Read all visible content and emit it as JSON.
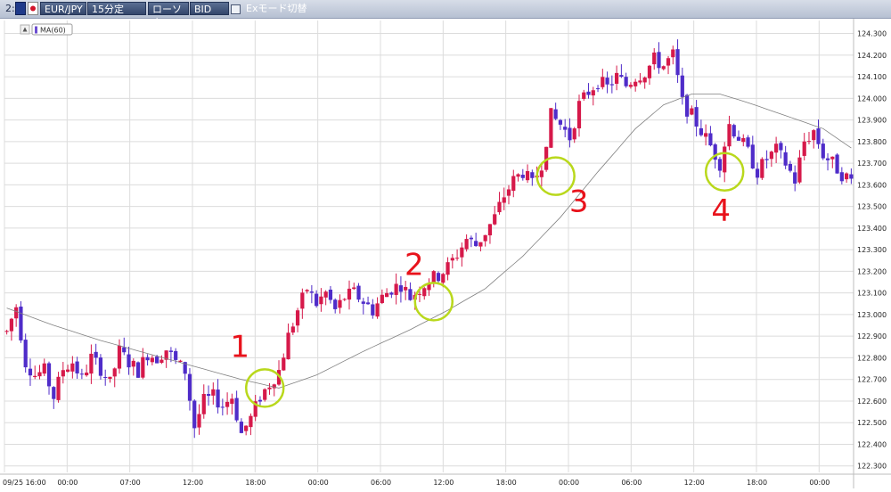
{
  "toolbar": {
    "chart_index": "2:",
    "symbol": "EUR/JPY",
    "timeframe": "15分定",
    "chart_style": "ローソク",
    "price_side": "BID",
    "ex_mode_label": "Exモード切替"
  },
  "colors": {
    "up_candle": "#d6194a",
    "down_candle": "#4f2cc9",
    "ma_line": "#808080",
    "marker_circle": "#b9d81c",
    "marker_number": "#e8121b",
    "grid": "#dcdcdc"
  },
  "chart_data": {
    "type": "candlestick",
    "indicator_label": "MA(60)",
    "ylim": [
      122.27,
      124.36
    ],
    "yticks": [
      "122.300",
      "122.400",
      "122.500",
      "122.600",
      "122.700",
      "122.800",
      "122.900",
      "123.000",
      "123.100",
      "123.200",
      "123.300",
      "123.400",
      "123.500",
      "123.600",
      "123.700",
      "123.800",
      "123.900",
      "124.000",
      "124.100",
      "124.200",
      "124.300"
    ],
    "xticks": [
      "09/25 16:00",
      "00:00",
      "07:00",
      "12:00",
      "18:00",
      "00:00",
      "06:00",
      "12:00",
      "18:00",
      "00:00",
      "06:00",
      "12:00",
      "18:00",
      "00:00"
    ],
    "price_path": [
      [
        0,
        122.92
      ],
      [
        2,
        123.04
      ],
      [
        4,
        122.78
      ],
      [
        6,
        122.72
      ],
      [
        8,
        122.74
      ],
      [
        10,
        122.62
      ],
      [
        12,
        122.75
      ],
      [
        14,
        122.78
      ],
      [
        16,
        122.7
      ],
      [
        18,
        122.8
      ],
      [
        20,
        122.75
      ],
      [
        22,
        122.68
      ],
      [
        24,
        122.83
      ],
      [
        26,
        122.78
      ],
      [
        28,
        122.74
      ],
      [
        30,
        122.82
      ],
      [
        32,
        122.8
      ],
      [
        34,
        122.84
      ],
      [
        36,
        122.78
      ],
      [
        38,
        122.74
      ],
      [
        40,
        122.48
      ],
      [
        42,
        122.6
      ],
      [
        44,
        122.62
      ],
      [
        46,
        122.58
      ],
      [
        48,
        122.62
      ],
      [
        50,
        122.45
      ],
      [
        52,
        122.52
      ],
      [
        54,
        122.62
      ],
      [
        56,
        122.68
      ],
      [
        58,
        122.74
      ],
      [
        60,
        122.9
      ],
      [
        62,
        123.02
      ],
      [
        64,
        123.12
      ],
      [
        66,
        123.05
      ],
      [
        68,
        123.1
      ],
      [
        70,
        123.02
      ],
      [
        72,
        123.08
      ],
      [
        74,
        123.1
      ],
      [
        76,
        123.06
      ],
      [
        78,
        123.02
      ],
      [
        80,
        123.08
      ],
      [
        82,
        123.12
      ],
      [
        84,
        123.14
      ],
      [
        86,
        123.08
      ],
      [
        88,
        123.12
      ],
      [
        90,
        123.16
      ],
      [
        92,
        123.18
      ],
      [
        94,
        123.22
      ],
      [
        96,
        123.28
      ],
      [
        98,
        123.35
      ],
      [
        100,
        123.32
      ],
      [
        102,
        123.38
      ],
      [
        104,
        123.45
      ],
      [
        106,
        123.55
      ],
      [
        108,
        123.62
      ],
      [
        110,
        123.66
      ],
      [
        112,
        123.6
      ],
      [
        114,
        123.7
      ],
      [
        116,
        123.92
      ],
      [
        118,
        123.88
      ],
      [
        120,
        123.82
      ],
      [
        122,
        123.97
      ],
      [
        124,
        124.03
      ],
      [
        126,
        124.08
      ],
      [
        128,
        124.05
      ],
      [
        130,
        124.1
      ],
      [
        132,
        124.06
      ],
      [
        134,
        124.1
      ],
      [
        136,
        124.12
      ],
      [
        138,
        124.18
      ],
      [
        140,
        124.15
      ],
      [
        142,
        124.2
      ],
      [
        144,
        123.98
      ],
      [
        146,
        123.92
      ],
      [
        148,
        123.85
      ],
      [
        150,
        123.78
      ],
      [
        152,
        123.7
      ],
      [
        154,
        123.88
      ],
      [
        156,
        123.82
      ],
      [
        158,
        123.75
      ],
      [
        160,
        123.66
      ],
      [
        162,
        123.72
      ],
      [
        164,
        123.76
      ],
      [
        166,
        123.7
      ],
      [
        168,
        123.62
      ],
      [
        170,
        123.8
      ],
      [
        172,
        123.85
      ],
      [
        174,
        123.74
      ],
      [
        176,
        123.7
      ],
      [
        178,
        123.65
      ],
      [
        180,
        123.62
      ]
    ],
    "ma_path": [
      [
        0,
        123.03
      ],
      [
        10,
        122.95
      ],
      [
        20,
        122.88
      ],
      [
        30,
        122.82
      ],
      [
        40,
        122.76
      ],
      [
        50,
        122.7
      ],
      [
        58,
        122.66
      ],
      [
        66,
        122.72
      ],
      [
        76,
        122.83
      ],
      [
        86,
        122.93
      ],
      [
        94,
        123.02
      ],
      [
        102,
        123.12
      ],
      [
        110,
        123.27
      ],
      [
        118,
        123.45
      ],
      [
        126,
        123.66
      ],
      [
        134,
        123.86
      ],
      [
        140,
        123.97
      ],
      [
        146,
        124.02
      ],
      [
        152,
        124.02
      ],
      [
        158,
        123.98
      ],
      [
        166,
        123.92
      ],
      [
        174,
        123.86
      ],
      [
        180,
        123.77
      ]
    ],
    "annotations": [
      {
        "label": "1",
        "bar": 55,
        "price": 122.66
      },
      {
        "label": "2",
        "bar": 91,
        "price": 123.06
      },
      {
        "label": "3",
        "bar": 117,
        "price": 123.64
      },
      {
        "label": "4",
        "bar": 153,
        "price": 123.66
      }
    ]
  }
}
